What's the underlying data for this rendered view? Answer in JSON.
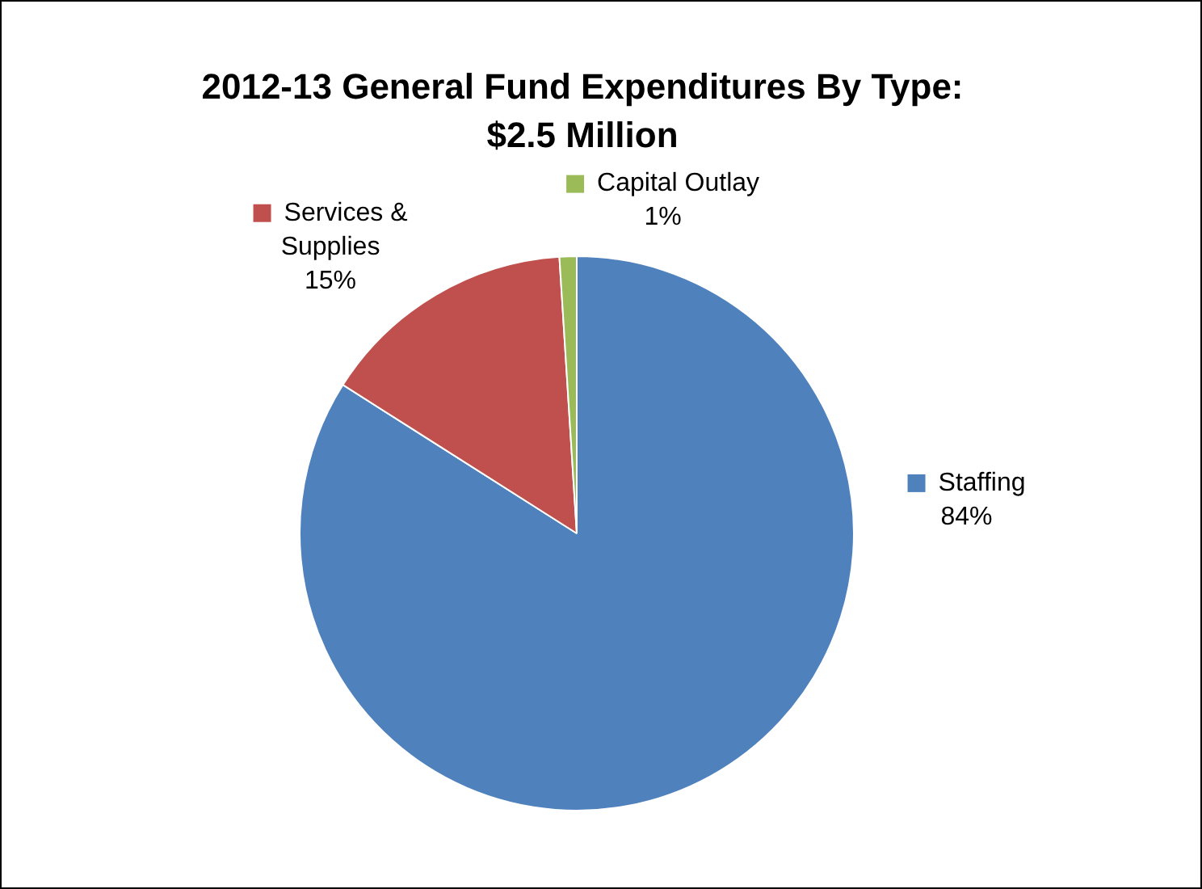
{
  "chart_data": {
    "type": "pie",
    "title": "2012-13 General Fund Expenditures By Type: $2.5 Million",
    "categories": [
      "Staffing",
      "Services & Supplies",
      "Capital Outlay"
    ],
    "values": [
      84,
      15,
      1
    ],
    "value_labels": [
      "84%",
      "15%",
      "1%"
    ],
    "colors": [
      "#4f81bd",
      "#c0504d",
      "#9bbb59"
    ],
    "legend": "top"
  }
}
